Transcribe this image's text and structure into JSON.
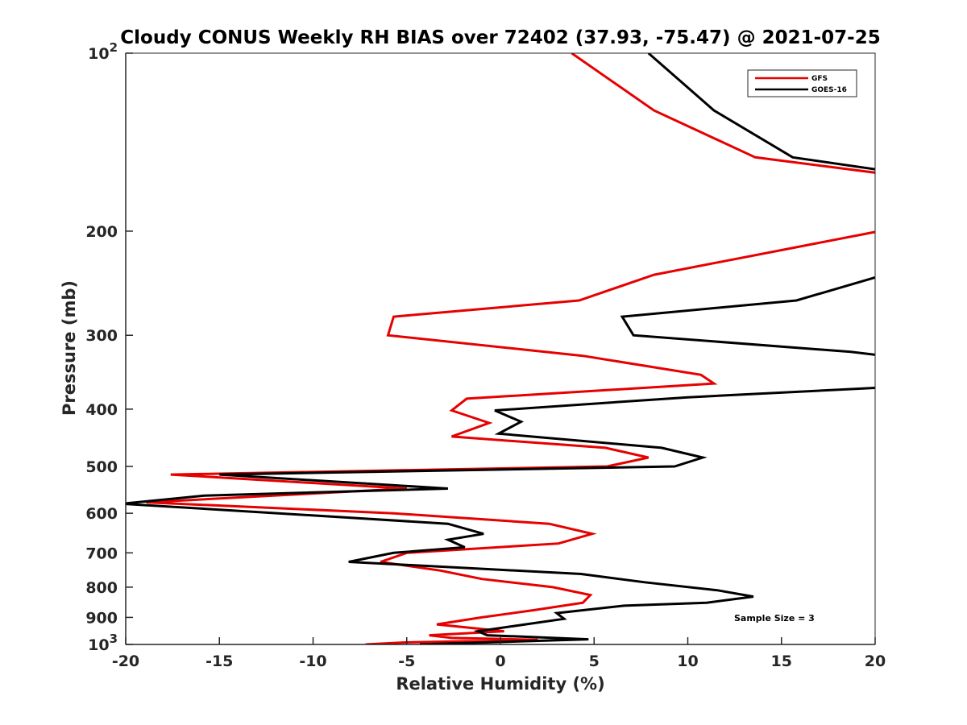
{
  "chart_data": {
    "type": "line",
    "title": "Cloudy CONUS Weekly RH BIAS over 72402 (37.93, -75.47) @ 2021-07-25",
    "xlabel": "Relative Humidity (%)",
    "ylabel": "Pressure (mb)",
    "xlim": [
      -20,
      20
    ],
    "ylim": [
      1000,
      100
    ],
    "y_scale": "log",
    "y_reversed": true,
    "grid": false,
    "legend_position": "top-right",
    "x_ticks": [
      -20,
      -15,
      -10,
      -5,
      0,
      5,
      10,
      15,
      20
    ],
    "x_tick_labels": [
      "-20",
      "-15",
      "-10",
      "-5",
      "0",
      "5",
      "10",
      "15",
      "20"
    ],
    "y_ticks": [
      100,
      200,
      300,
      400,
      500,
      600,
      700,
      800,
      900,
      1000
    ],
    "y_tick_labels": [
      "10^2",
      "200",
      "300",
      "400",
      "500",
      "600",
      "700",
      "800",
      "900",
      "10^3"
    ],
    "annotation": "Sample Size = 3",
    "series": [
      {
        "name": "GFS",
        "color": "#e60000",
        "points": [
          {
            "x": 3.8,
            "y": 100
          },
          {
            "x": 8.2,
            "y": 125
          },
          {
            "x": 13.6,
            "y": 150
          },
          {
            "x": 20.5,
            "y": 160
          },
          {
            "x": 20.2,
            "y": 200
          },
          {
            "x": 8.2,
            "y": 237
          },
          {
            "x": 4.2,
            "y": 262
          },
          {
            "x": -5.7,
            "y": 279
          },
          {
            "x": -6.0,
            "y": 300
          },
          {
            "x": 4.4,
            "y": 325
          },
          {
            "x": 10.7,
            "y": 350
          },
          {
            "x": 11.4,
            "y": 362
          },
          {
            "x": -1.8,
            "y": 384
          },
          {
            "x": -2.6,
            "y": 402
          },
          {
            "x": -0.6,
            "y": 422
          },
          {
            "x": -2.6,
            "y": 445
          },
          {
            "x": 5.6,
            "y": 465
          },
          {
            "x": 7.9,
            "y": 483
          },
          {
            "x": 5.7,
            "y": 500
          },
          {
            "x": -17.6,
            "y": 516
          },
          {
            "x": -5.0,
            "y": 545
          },
          {
            "x": -18.9,
            "y": 575
          },
          {
            "x": -5.7,
            "y": 600
          },
          {
            "x": 2.6,
            "y": 625
          },
          {
            "x": 4.9,
            "y": 650
          },
          {
            "x": 3.1,
            "y": 675
          },
          {
            "x": -5.0,
            "y": 700
          },
          {
            "x": -6.4,
            "y": 725
          },
          {
            "x": -3.2,
            "y": 750
          },
          {
            "x": -1.0,
            "y": 775
          },
          {
            "x": 2.8,
            "y": 800
          },
          {
            "x": 4.8,
            "y": 825
          },
          {
            "x": 4.4,
            "y": 850
          },
          {
            "x": 1.8,
            "y": 875
          },
          {
            "x": -1.0,
            "y": 900
          },
          {
            "x": -3.4,
            "y": 925
          },
          {
            "x": 0.2,
            "y": 950
          },
          {
            "x": -3.8,
            "y": 965
          },
          {
            "x": -2.6,
            "y": 975
          },
          {
            "x": 2.0,
            "y": 982
          },
          {
            "x": -5.0,
            "y": 992
          },
          {
            "x": -7.2,
            "y": 1000
          }
        ]
      },
      {
        "name": "GOES-16",
        "color": "#000000",
        "points": [
          {
            "x": 7.9,
            "y": 100
          },
          {
            "x": 11.4,
            "y": 125
          },
          {
            "x": 15.6,
            "y": 150
          },
          {
            "x": 20.5,
            "y": 158
          },
          {
            "x": 20.3,
            "y": 238
          },
          {
            "x": 15.8,
            "y": 262
          },
          {
            "x": 6.5,
            "y": 279
          },
          {
            "x": 7.1,
            "y": 300
          },
          {
            "x": 18.7,
            "y": 320
          },
          {
            "x": 20.5,
            "y": 325
          },
          {
            "x": 20.2,
            "y": 368
          },
          {
            "x": 10.0,
            "y": 382
          },
          {
            "x": -0.3,
            "y": 402
          },
          {
            "x": 1.1,
            "y": 420
          },
          {
            "x": -0.1,
            "y": 440
          },
          {
            "x": 8.6,
            "y": 465
          },
          {
            "x": 10.8,
            "y": 483
          },
          {
            "x": 9.3,
            "y": 500
          },
          {
            "x": -15.0,
            "y": 516
          },
          {
            "x": -2.8,
            "y": 545
          },
          {
            "x": -15.8,
            "y": 560
          },
          {
            "x": -20.2,
            "y": 578
          },
          {
            "x": -2.8,
            "y": 625
          },
          {
            "x": -0.9,
            "y": 650
          },
          {
            "x": -2.8,
            "y": 665
          },
          {
            "x": -1.9,
            "y": 685
          },
          {
            "x": -5.7,
            "y": 700
          },
          {
            "x": -8.1,
            "y": 725
          },
          {
            "x": 4.3,
            "y": 760
          },
          {
            "x": 7.7,
            "y": 785
          },
          {
            "x": 11.6,
            "y": 810
          },
          {
            "x": 13.5,
            "y": 830
          },
          {
            "x": 11.0,
            "y": 850
          },
          {
            "x": 6.6,
            "y": 860
          },
          {
            "x": 3.0,
            "y": 885
          },
          {
            "x": 3.4,
            "y": 905
          },
          {
            "x": -1.2,
            "y": 950
          },
          {
            "x": -0.7,
            "y": 965
          },
          {
            "x": 4.7,
            "y": 980
          },
          {
            "x": -4.3,
            "y": 1000
          }
        ]
      }
    ]
  }
}
